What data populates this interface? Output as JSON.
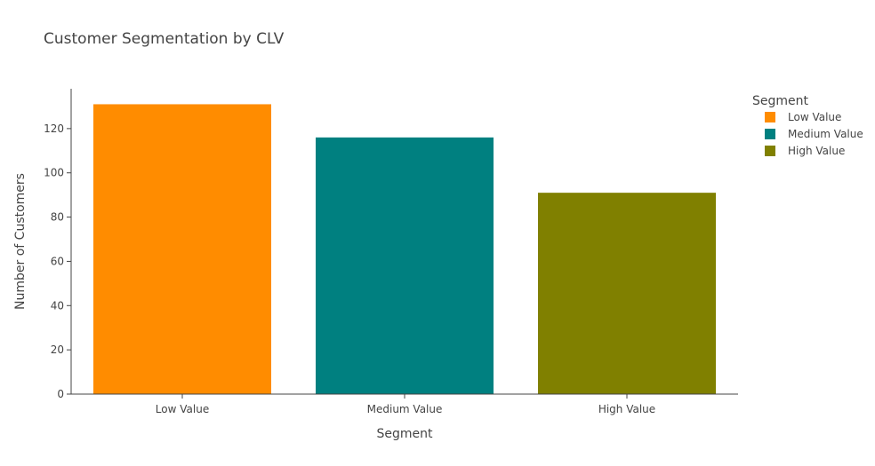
{
  "chart_data": {
    "type": "bar",
    "title": "Customer Segmentation by CLV",
    "xlabel": "Segment",
    "ylabel": "Number of Customers",
    "categories": [
      "Low Value",
      "Medium Value",
      "High Value"
    ],
    "values": [
      131,
      116,
      91
    ],
    "colors": [
      "#ff8c00",
      "#008080",
      "#808000"
    ],
    "ylim": [
      0,
      138
    ],
    "yticks": [
      0,
      20,
      40,
      60,
      80,
      100,
      120
    ],
    "grid": false,
    "legend": {
      "title": "Segment",
      "placement": "right",
      "entries": [
        "Low Value",
        "Medium Value",
        "High Value"
      ]
    }
  }
}
